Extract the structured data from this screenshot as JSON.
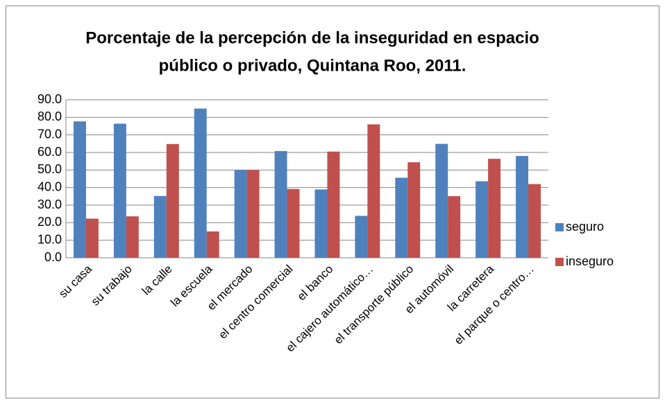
{
  "chart_data": {
    "type": "bar",
    "title": [
      "Porcentaje de la percepción de la inseguridad en espacio",
      "público o privado, Quintana Roo, 2011."
    ],
    "categories": [
      "su casa",
      "su trabajo",
      "la calle",
      "la escuela",
      "el mercado",
      "el centro comercial",
      "el banco",
      "el cajero automático…",
      "el transporte público",
      "el automóvil",
      "la carretera",
      "el parque o centro…"
    ],
    "series": [
      {
        "name": "seguro",
        "color": "#4f81bd",
        "values": [
          77.7,
          76.4,
          35.2,
          85.0,
          50.0,
          60.8,
          38.9,
          23.9,
          45.6,
          64.9,
          43.6,
          58.0
        ]
      },
      {
        "name": "inseguro",
        "color": "#c0504d",
        "values": [
          22.3,
          23.6,
          64.8,
          15.0,
          50.0,
          39.2,
          60.5,
          76.0,
          54.4,
          35.1,
          56.4,
          42.0
        ]
      }
    ],
    "ylim": [
      0,
      90
    ],
    "yticks": [
      {
        "value": 0,
        "label": "0.0"
      },
      {
        "value": 10,
        "label": "10.0"
      },
      {
        "value": 20,
        "label": "20.0"
      },
      {
        "value": 30,
        "label": "30.0"
      },
      {
        "value": 40,
        "label": "40.0"
      },
      {
        "value": 50,
        "label": "50.0"
      },
      {
        "value": 60,
        "label": "60.0"
      },
      {
        "value": 70,
        "label": "70.0"
      },
      {
        "value": 80,
        "label": "80.0"
      },
      {
        "value": 90,
        "label": "90.0"
      }
    ],
    "grid": true,
    "legend": "right"
  }
}
